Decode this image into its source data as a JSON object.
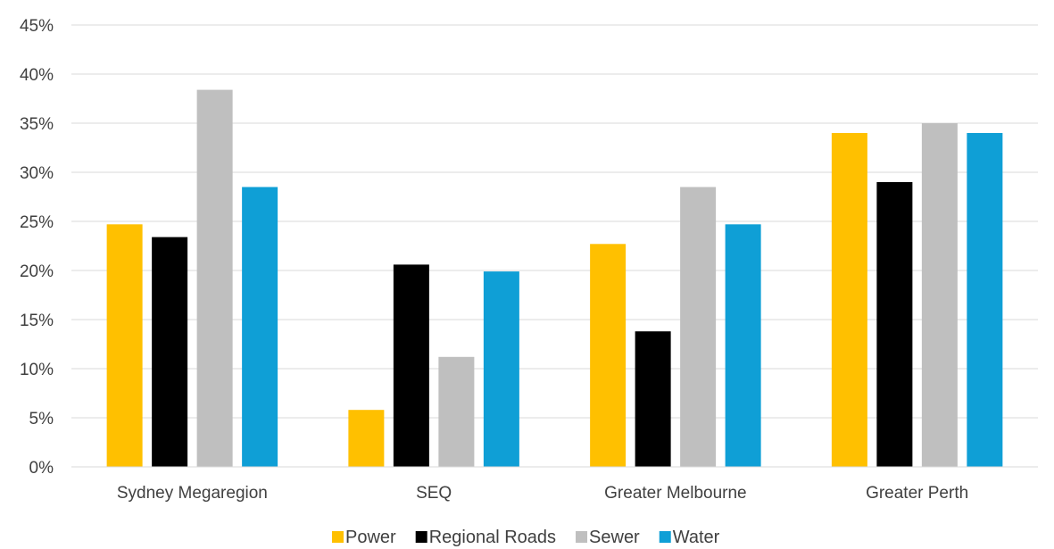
{
  "chart_data": {
    "type": "bar",
    "categories": [
      "Sydney Megaregion",
      "SEQ",
      "Greater Melbourne",
      "Greater Perth"
    ],
    "series": [
      {
        "name": "Power",
        "color": "#FFC000",
        "values": [
          24.7,
          5.8,
          22.7,
          34.0
        ]
      },
      {
        "name": "Regional Roads",
        "color": "#000000",
        "values": [
          23.4,
          20.6,
          13.8,
          29.0
        ]
      },
      {
        "name": "Sewer",
        "color": "#BFBFBF",
        "values": [
          38.4,
          11.2,
          28.5,
          35.0
        ]
      },
      {
        "name": "Water",
        "color": "#0F9FD6",
        "values": [
          28.5,
          19.9,
          24.7,
          34.0
        ]
      }
    ],
    "ylim": [
      0,
      45
    ],
    "yticks": [
      0,
      5,
      10,
      15,
      20,
      25,
      30,
      35,
      40,
      45
    ],
    "ytick_labels": [
      "0%",
      "5%",
      "10%",
      "15%",
      "20%",
      "25%",
      "30%",
      "35%",
      "40%",
      "45%"
    ],
    "grid": true,
    "legend": "bottom"
  }
}
